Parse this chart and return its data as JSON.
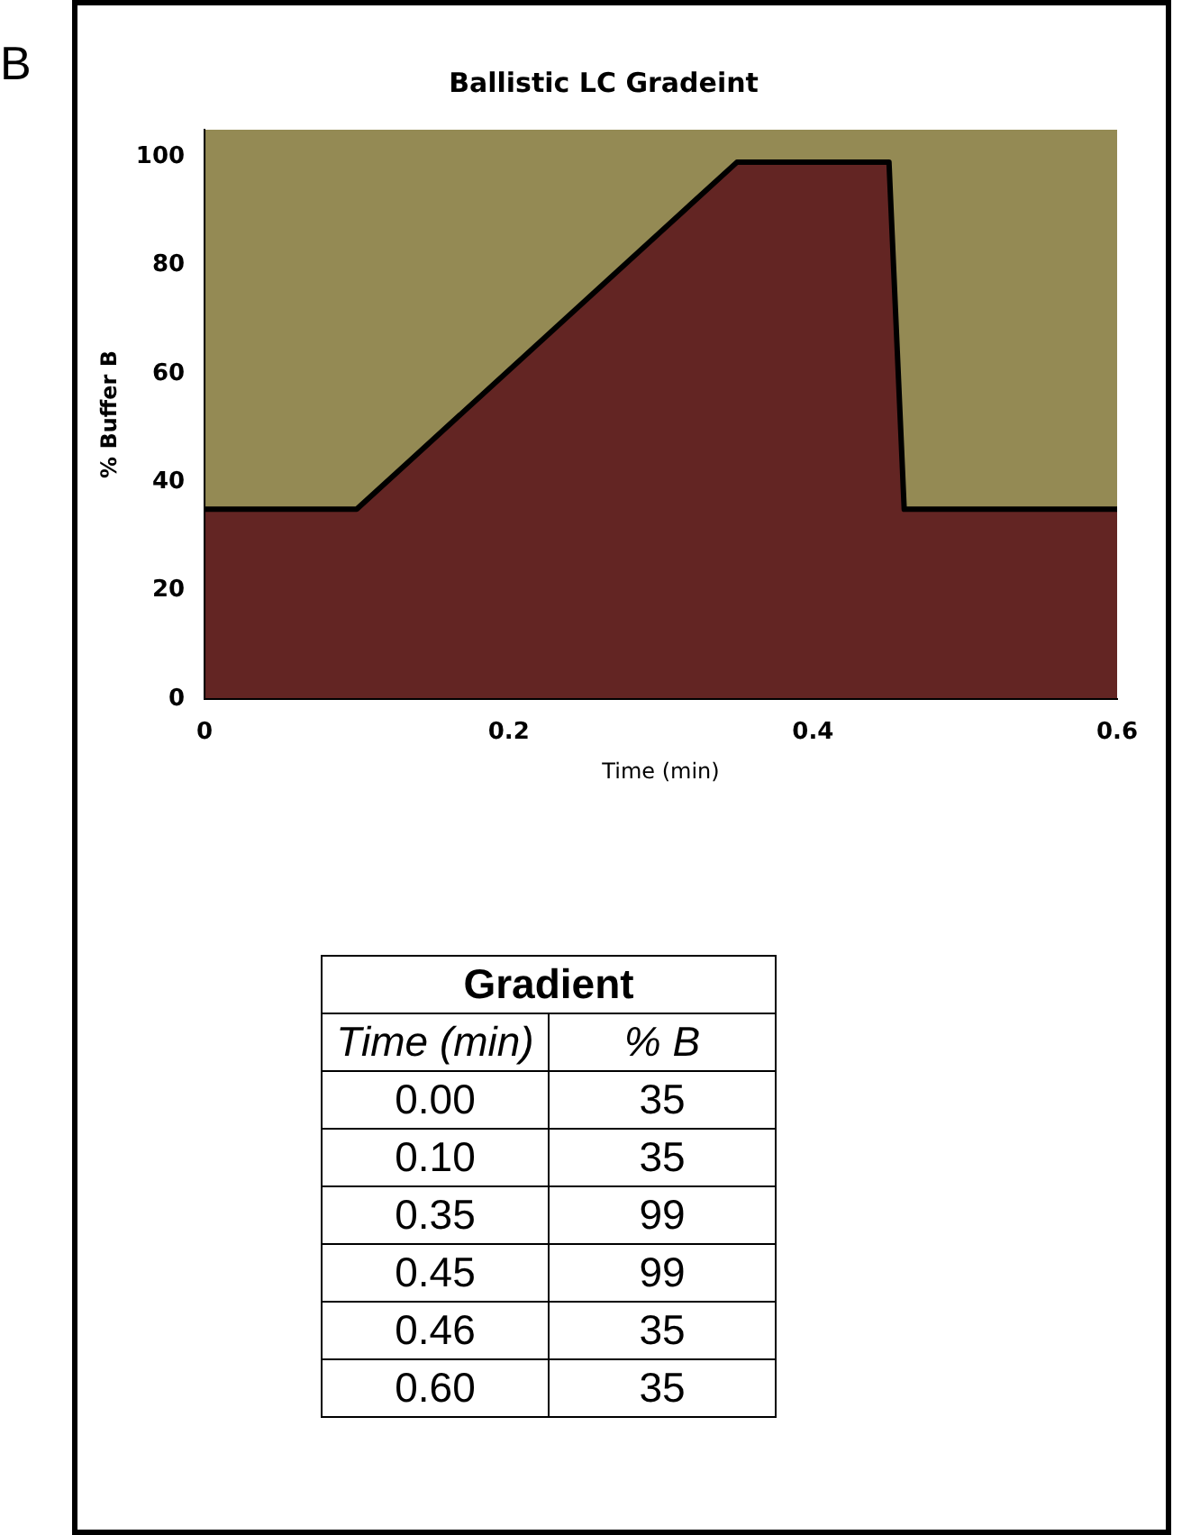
{
  "chart_data": [
    {
      "type": "area",
      "title": "Ballistic LC Gradeint",
      "xlabel": "Time (min)",
      "ylabel": "% Buffer B",
      "x": [
        0,
        0.1,
        0.35,
        0.45,
        0.46,
        0.6
      ],
      "series": [
        {
          "color": "#632523",
          "values": [
            35,
            35,
            99,
            99,
            35,
            35
          ]
        }
      ],
      "xlim": [
        0,
        0.6
      ],
      "xticks": [
        0,
        0.2,
        0.4,
        0.6
      ],
      "ylim": [
        0,
        105
      ],
      "yticks": [
        0,
        20,
        40,
        60,
        80,
        100
      ],
      "bands": [
        {
          "axis": "y",
          "from": 35,
          "to": 105,
          "color": "#948a54"
        }
      ],
      "grid": false,
      "legend": false,
      "marker": "none",
      "line_style": "solid",
      "annotations": [
        "B"
      ]
    },
    {
      "type": "other",
      "title": "Gradient",
      "xlabel": "Time (min)",
      "ylabel": "% B",
      "categories": [
        "0.00",
        "0.10",
        "0.35",
        "0.45",
        "0.46",
        "0.60"
      ],
      "values": [
        35,
        35,
        99,
        99,
        35,
        35
      ],
      "data_labels": true
    }
  ]
}
